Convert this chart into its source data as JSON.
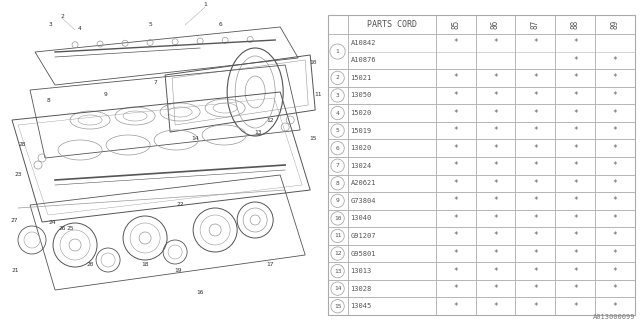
{
  "diagram_id": "A013000099",
  "table_header": "PARTS CORD",
  "year_cols": [
    "85",
    "86",
    "87",
    "88",
    "89"
  ],
  "rows": [
    {
      "num": "1",
      "double": true,
      "parts": [
        "A10842",
        "A10876"
      ],
      "marks": [
        [
          "*",
          "*",
          "*",
          "*",
          ""
        ],
        [
          "",
          "",
          "",
          "*",
          "*"
        ]
      ]
    },
    {
      "num": "2",
      "double": false,
      "parts": [
        "15021"
      ],
      "marks": [
        [
          "*",
          "*",
          "*",
          "*",
          "*"
        ]
      ]
    },
    {
      "num": "3",
      "double": false,
      "parts": [
        "13050"
      ],
      "marks": [
        [
          "*",
          "*",
          "*",
          "*",
          "*"
        ]
      ]
    },
    {
      "num": "4",
      "double": false,
      "parts": [
        "15020"
      ],
      "marks": [
        [
          "*",
          "*",
          "*",
          "*",
          "*"
        ]
      ]
    },
    {
      "num": "5",
      "double": false,
      "parts": [
        "15019"
      ],
      "marks": [
        [
          "*",
          "*",
          "*",
          "*",
          "*"
        ]
      ]
    },
    {
      "num": "6",
      "double": false,
      "parts": [
        "13020"
      ],
      "marks": [
        [
          "*",
          "*",
          "*",
          "*",
          "*"
        ]
      ]
    },
    {
      "num": "7",
      "double": false,
      "parts": [
        "13024"
      ],
      "marks": [
        [
          "*",
          "*",
          "*",
          "*",
          "*"
        ]
      ]
    },
    {
      "num": "8",
      "double": false,
      "parts": [
        "A20621"
      ],
      "marks": [
        [
          "*",
          "*",
          "*",
          "*",
          "*"
        ]
      ]
    },
    {
      "num": "9",
      "double": false,
      "parts": [
        "G73804"
      ],
      "marks": [
        [
          "*",
          "*",
          "*",
          "*",
          "*"
        ]
      ]
    },
    {
      "num": "10",
      "double": false,
      "parts": [
        "13040"
      ],
      "marks": [
        [
          "*",
          "*",
          "*",
          "*",
          "*"
        ]
      ]
    },
    {
      "num": "11",
      "double": false,
      "parts": [
        "G91207"
      ],
      "marks": [
        [
          "*",
          "*",
          "*",
          "*",
          "*"
        ]
      ]
    },
    {
      "num": "12",
      "double": false,
      "parts": [
        "G95801"
      ],
      "marks": [
        [
          "*",
          "*",
          "*",
          "*",
          "*"
        ]
      ]
    },
    {
      "num": "13",
      "double": false,
      "parts": [
        "13013"
      ],
      "marks": [
        [
          "*",
          "*",
          "*",
          "*",
          "*"
        ]
      ]
    },
    {
      "num": "14",
      "double": false,
      "parts": [
        "13028"
      ],
      "marks": [
        [
          "*",
          "*",
          "*",
          "*",
          "*"
        ]
      ]
    },
    {
      "num": "15",
      "double": false,
      "parts": [
        "13045"
      ],
      "marks": [
        [
          "*",
          "*",
          "*",
          "*",
          "*"
        ]
      ]
    }
  ],
  "bg_color": "#ffffff",
  "line_color": "#aaaaaa",
  "text_color": "#555555",
  "dark_color": "#333333"
}
